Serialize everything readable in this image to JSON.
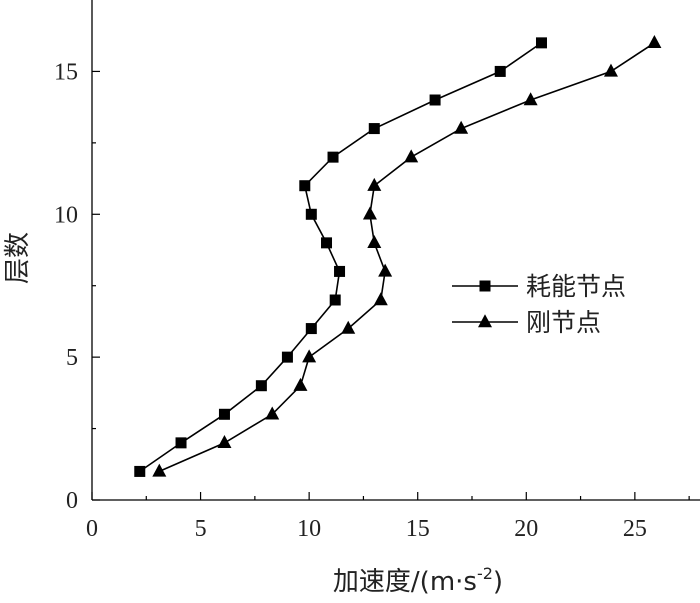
{
  "chart_data": {
    "type": "line",
    "xlabel": "加速度/(m·s",
    "xlabel_exp": "-2",
    "xlabel_close": ")",
    "ylabel": "层数",
    "xlim": [
      0,
      28
    ],
    "ylim": [
      0,
      17.5
    ],
    "x_ticks": [
      0,
      5,
      10,
      15,
      20,
      25
    ],
    "y_ticks": [
      0,
      5,
      10,
      15
    ],
    "legend_position": "right-middle",
    "grid": false,
    "series": [
      {
        "name": "耗能节点",
        "marker": "square",
        "color": "#000000",
        "points": [
          {
            "x": 2.2,
            "y": 1
          },
          {
            "x": 4.1,
            "y": 2
          },
          {
            "x": 6.1,
            "y": 3
          },
          {
            "x": 7.8,
            "y": 4
          },
          {
            "x": 9.0,
            "y": 5
          },
          {
            "x": 10.1,
            "y": 6
          },
          {
            "x": 11.2,
            "y": 7
          },
          {
            "x": 11.4,
            "y": 8
          },
          {
            "x": 10.8,
            "y": 9
          },
          {
            "x": 10.1,
            "y": 10
          },
          {
            "x": 9.8,
            "y": 11
          },
          {
            "x": 11.1,
            "y": 12
          },
          {
            "x": 13.0,
            "y": 13
          },
          {
            "x": 15.8,
            "y": 14
          },
          {
            "x": 18.8,
            "y": 15
          },
          {
            "x": 20.7,
            "y": 16
          }
        ]
      },
      {
        "name": "刚节点",
        "marker": "triangle",
        "color": "#000000",
        "points": [
          {
            "x": 3.1,
            "y": 1
          },
          {
            "x": 6.1,
            "y": 2
          },
          {
            "x": 8.3,
            "y": 3
          },
          {
            "x": 9.6,
            "y": 4
          },
          {
            "x": 10.0,
            "y": 5
          },
          {
            "x": 11.8,
            "y": 6
          },
          {
            "x": 13.3,
            "y": 7
          },
          {
            "x": 13.5,
            "y": 8
          },
          {
            "x": 13.0,
            "y": 9
          },
          {
            "x": 12.8,
            "y": 10
          },
          {
            "x": 13.0,
            "y": 11
          },
          {
            "x": 14.7,
            "y": 12
          },
          {
            "x": 17.0,
            "y": 13
          },
          {
            "x": 20.2,
            "y": 14
          },
          {
            "x": 23.9,
            "y": 15
          },
          {
            "x": 25.9,
            "y": 16
          }
        ]
      }
    ]
  }
}
